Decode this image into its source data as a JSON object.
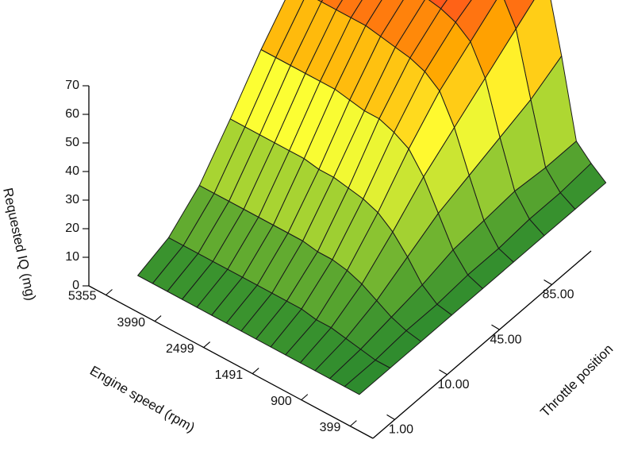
{
  "chart_data": {
    "type": "surface3d",
    "zlabel": "Requested IQ (mg)",
    "xlabel": "Engine speed (rpm)",
    "ylabel": "Throttle position",
    "z_ticks": [
      "0",
      "10",
      "20",
      "30",
      "40",
      "50",
      "60",
      "70"
    ],
    "zlim": [
      0,
      70
    ],
    "engine_speed_ticks": [
      "5355",
      "3990",
      "2499",
      "1491",
      "900",
      "399"
    ],
    "throttle_ticks": [
      "1.00",
      "10.00",
      "45.00",
      "85.00"
    ],
    "colormap": [
      "#2e8b2e",
      "#9acd32",
      "#ffff33",
      "#ffa500",
      "#ff2a2a"
    ],
    "grid": {
      "engine_speed_index": [
        0,
        1,
        2,
        3,
        4,
        5,
        6,
        7,
        8,
        9,
        10,
        11,
        12,
        13,
        14,
        15
      ],
      "throttle_index": [
        0,
        1,
        2,
        3,
        4,
        5,
        6,
        7,
        8
      ],
      "requested_iq": [
        [
          0,
          0,
          0,
          0,
          0,
          0,
          0,
          0,
          0
        ],
        [
          0,
          0,
          1,
          1,
          2,
          2,
          3,
          3,
          4
        ],
        [
          0,
          1,
          3,
          5,
          8,
          9,
          10,
          9,
          9
        ],
        [
          0,
          2,
          6,
          12,
          18,
          22,
          26,
          30,
          36
        ],
        [
          0,
          3,
          9,
          18,
          28,
          36,
          44,
          52,
          60
        ],
        [
          0,
          3,
          11,
          22,
          35,
          46,
          54,
          62,
          66
        ],
        [
          0,
          4,
          12,
          24,
          38,
          50,
          58,
          64,
          68
        ],
        [
          0,
          4,
          12,
          25,
          40,
          52,
          60,
          66,
          70
        ],
        [
          0,
          4,
          13,
          26,
          40,
          53,
          61,
          67,
          70
        ],
        [
          0,
          4,
          13,
          26,
          41,
          54,
          62,
          67,
          70
        ],
        [
          0,
          4,
          13,
          27,
          42,
          55,
          63,
          68,
          70
        ],
        [
          0,
          4,
          13,
          27,
          42,
          55,
          63,
          68,
          70
        ],
        [
          0,
          4,
          13,
          27,
          42,
          55,
          63,
          68,
          70
        ],
        [
          0,
          4,
          13,
          27,
          42,
          55,
          63,
          68,
          70
        ],
        [
          0,
          4,
          13,
          27,
          42,
          55,
          63,
          64,
          66
        ],
        [
          0,
          4,
          13,
          27,
          42,
          55,
          63,
          64,
          66
        ]
      ]
    }
  }
}
